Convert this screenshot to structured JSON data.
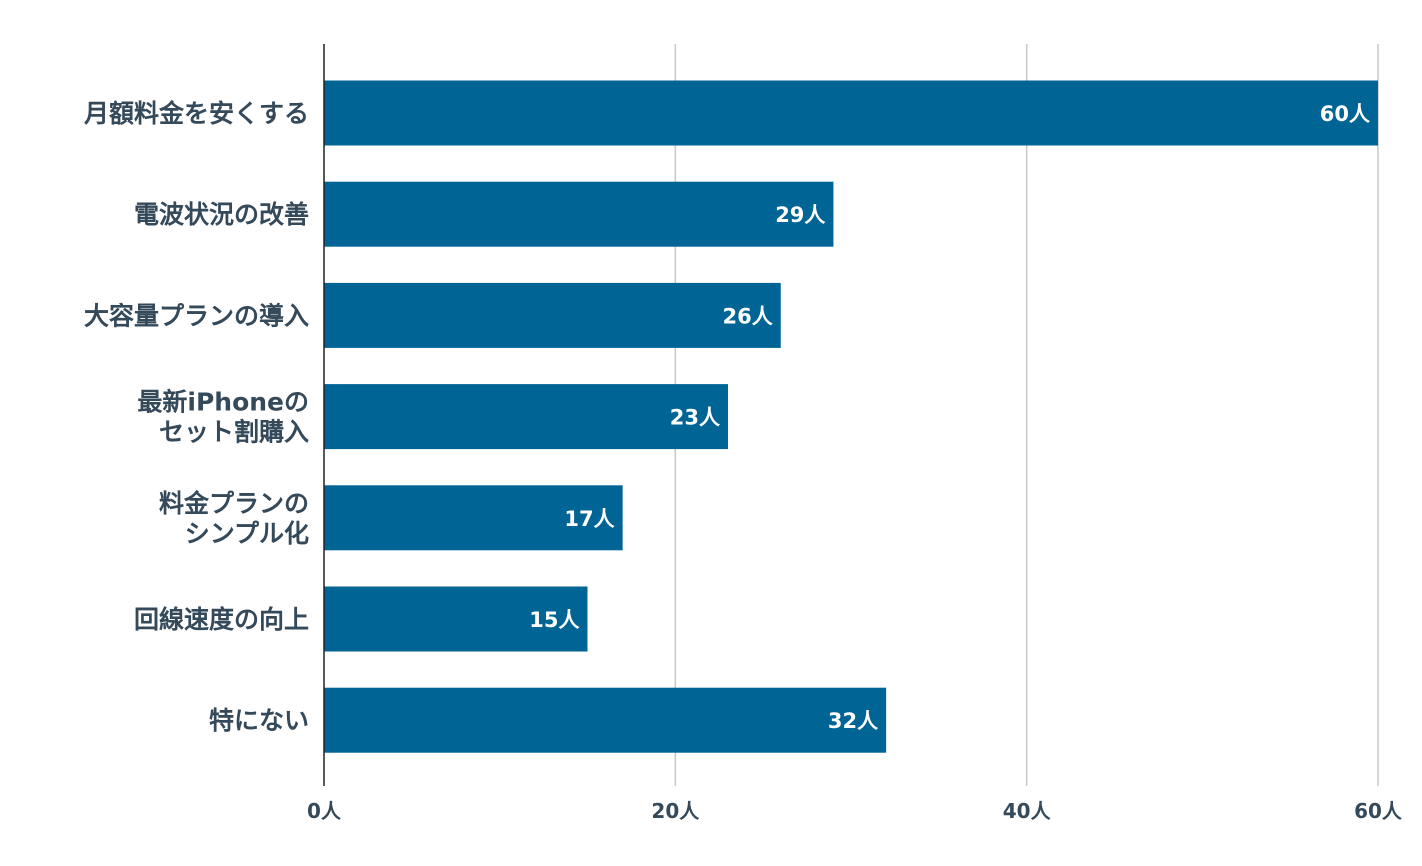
{
  "chart_data": {
    "type": "bar",
    "orientation": "horizontal",
    "title": "",
    "xlabel": "",
    "ylabel": "",
    "unit_suffix": "人",
    "xlim": [
      0,
      60
    ],
    "x_ticks": [
      0,
      20,
      40,
      60
    ],
    "x_tick_labels": [
      "0人",
      "20人",
      "40人",
      "60人"
    ],
    "grid": true,
    "legend": "none",
    "bar_color": "#006494",
    "categories": [
      "月額料金を安くする",
      "電波状況の改善",
      "大容量プランの導入",
      "最新iPhoneの\nセット割購入",
      "料金プランの\nシンプル化",
      "回線速度の向上",
      "特にない"
    ],
    "values": [
      60,
      29,
      26,
      23,
      17,
      15,
      32
    ],
    "value_labels": [
      "60人",
      "29人",
      "26人",
      "23人",
      "17人",
      "15人",
      "32人"
    ]
  }
}
